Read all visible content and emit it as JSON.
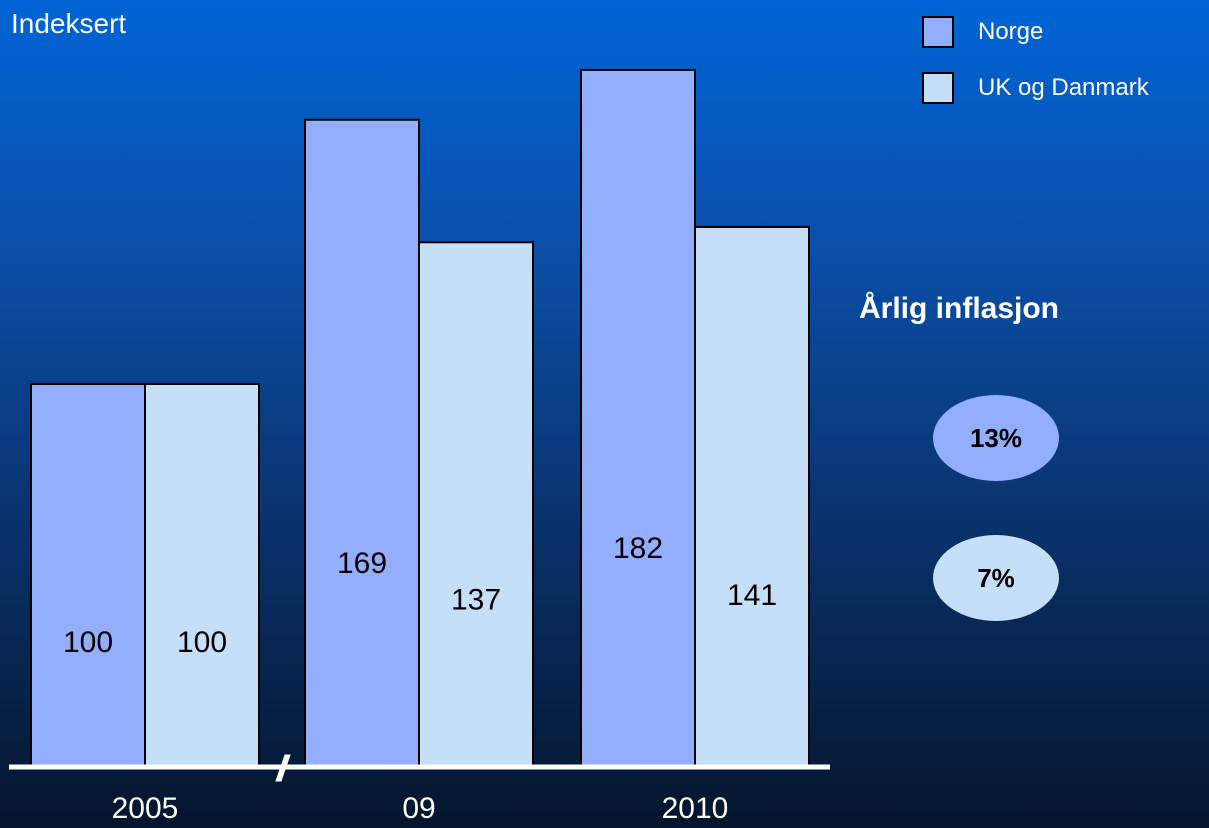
{
  "chart_data": {
    "type": "bar",
    "subtitle": "Indeksert",
    "categories": [
      "2005",
      "09",
      "2010"
    ],
    "series": [
      {
        "name": "Norge",
        "values": [
          100,
          169,
          182
        ],
        "color": "#94aeff"
      },
      {
        "name": "UK og Danmark",
        "values": [
          100,
          137,
          141
        ],
        "color": "#c6dff8"
      }
    ],
    "data_labels": {
      "Norge": [
        "100",
        "169",
        "182"
      ],
      "UK og Danmark": [
        "100",
        "137",
        "141"
      ]
    },
    "ylim": [
      0,
      200
    ],
    "grid": false,
    "axis_break_between": [
      "2005",
      "09"
    ],
    "legend_position": "top-right"
  },
  "side_panel": {
    "title": "Årlig inflasjon",
    "norge_rate": "13%",
    "uk_rate": "7%"
  },
  "colors": {
    "norge": "#94aeff",
    "uk": "#c6dff8",
    "axis": "#ffffff",
    "bar_border": "#000000"
  }
}
